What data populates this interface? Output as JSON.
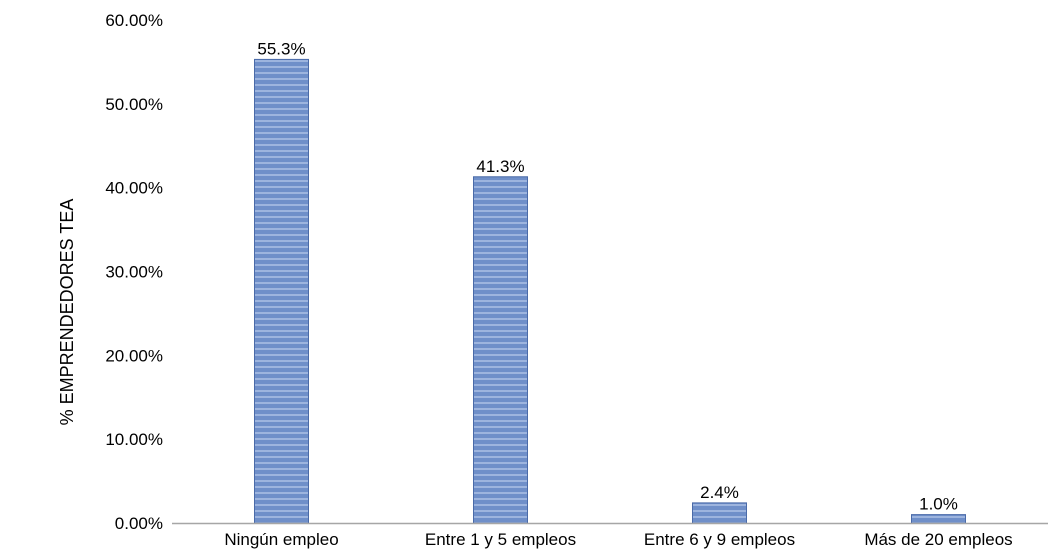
{
  "chart_data": {
    "type": "bar",
    "categories": [
      "Ningún empleo",
      "Entre 1 y 5 empleos",
      "Entre 6 y 9 empleos",
      "Más de 20 empleos"
    ],
    "values": [
      55.3,
      41.3,
      2.4,
      1.0
    ],
    "data_labels": [
      "55.3%",
      "41.3%",
      "2.4%",
      "1.0%"
    ],
    "ylabel": "% EMPRENDEDORES TEA",
    "xlabel": "",
    "ylim": [
      0,
      60
    ],
    "yticks": [
      0,
      10,
      20,
      30,
      40,
      50,
      60
    ],
    "ytick_labels": [
      "0.00%",
      "10.00%",
      "20.00%",
      "30.00%",
      "40.00%",
      "50.00%",
      "60.00%"
    ],
    "grid": false,
    "legend": "none",
    "colors": {
      "bar_fill": "#6f8fc9",
      "bar_stripe": "#9db4de",
      "bar_edge": "#4a6aa8",
      "axis": "#a6a6a6"
    }
  }
}
